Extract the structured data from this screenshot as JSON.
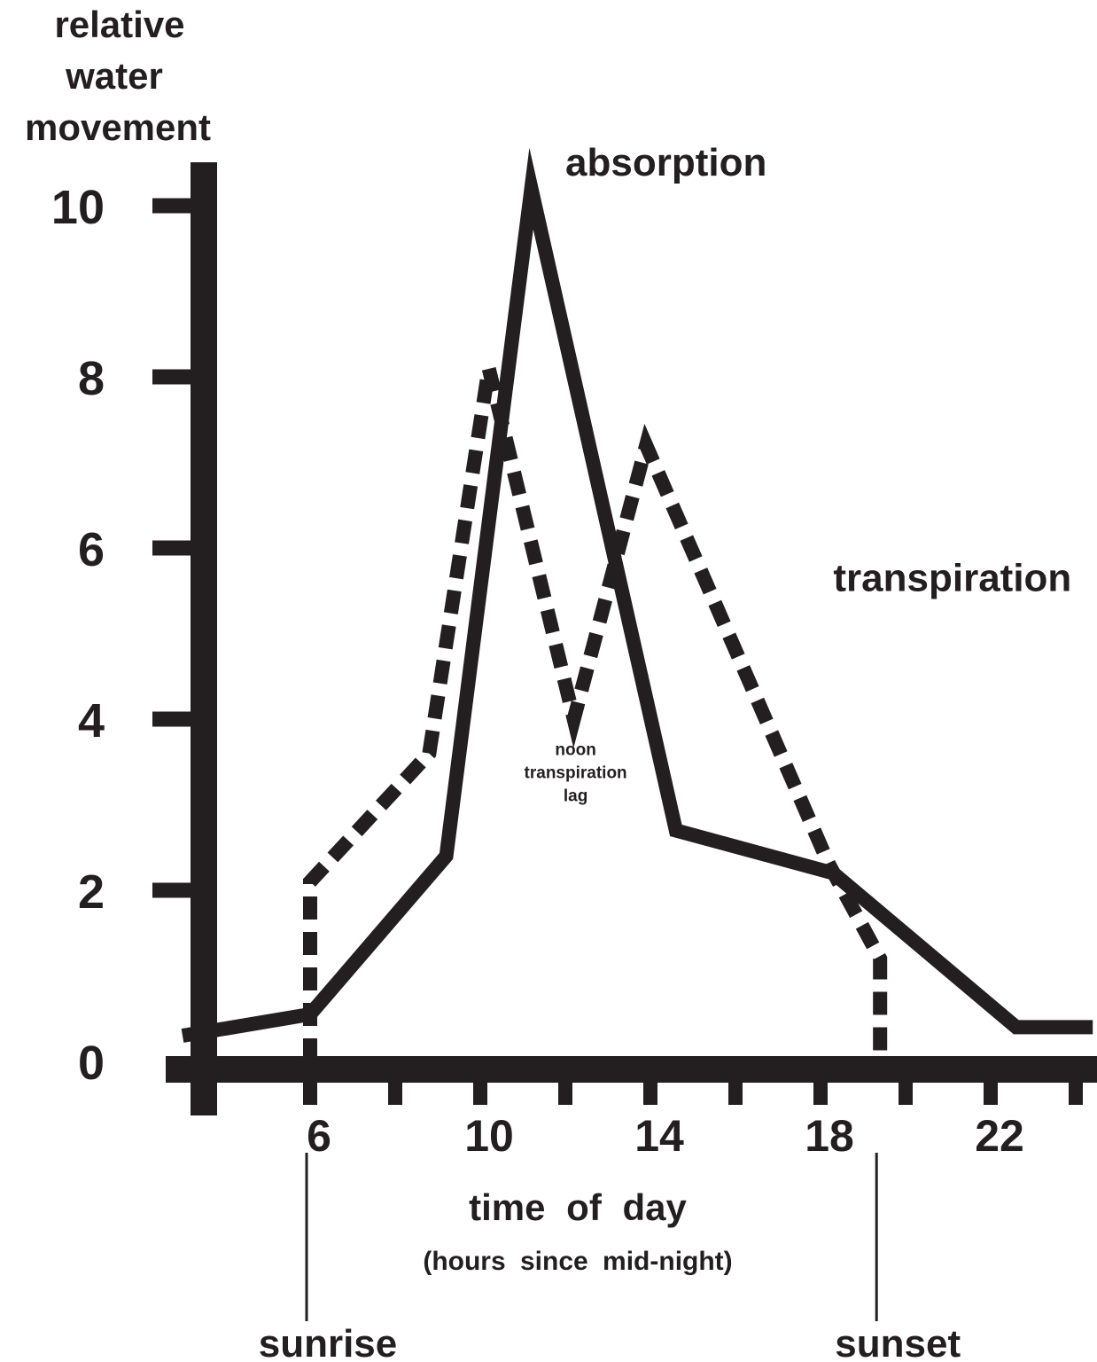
{
  "chart_data": {
    "type": "line",
    "ylabel": [
      "relative",
      "water",
      "movement"
    ],
    "xlabel": "time of day",
    "xlabel_sub": "(hours since mid-night)",
    "xlim": [
      2.9,
      24.4
    ],
    "ylim": [
      0,
      10.6
    ],
    "yticks": [
      0,
      2,
      4,
      6,
      8,
      10
    ],
    "xticks": [
      6,
      8,
      10,
      12,
      14,
      16,
      18,
      20,
      22,
      24
    ],
    "xtick_labels": [
      {
        "x": 6,
        "label": "6"
      },
      {
        "x": 10,
        "label": "10"
      },
      {
        "x": 14,
        "label": "14"
      },
      {
        "x": 18,
        "label": "18"
      },
      {
        "x": 22,
        "label": "22"
      }
    ],
    "series": [
      {
        "name": "absorption",
        "style": "solid",
        "color": "#231f20",
        "points": [
          [
            3.0,
            0.3
          ],
          [
            6.0,
            0.55
          ],
          [
            9.2,
            2.4
          ],
          [
            11.2,
            10.2
          ],
          [
            14.6,
            2.7
          ],
          [
            18.3,
            2.2
          ],
          [
            22.6,
            0.4
          ],
          [
            24.4,
            0.4
          ]
        ]
      },
      {
        "name": "transpiration",
        "style": "dashed",
        "color": "#231f20",
        "points": [
          [
            6.0,
            0.0
          ],
          [
            6.0,
            2.1
          ],
          [
            8.8,
            3.6
          ],
          [
            10.2,
            8.1
          ],
          [
            12.2,
            4.0
          ],
          [
            13.9,
            7.2
          ],
          [
            18.2,
            2.3
          ],
          [
            19.4,
            1.2
          ],
          [
            19.4,
            0.0
          ]
        ]
      }
    ],
    "series_labels": [
      {
        "series": "absorption",
        "x": 12.0,
        "y": 10.35
      },
      {
        "series": "transpiration",
        "x": 18.3,
        "y": 5.5
      }
    ],
    "annotations": [
      {
        "lines": [
          "noon",
          "transpiration",
          "lag"
        ],
        "x": 12.2,
        "y": 3.5
      }
    ],
    "events": [
      {
        "label": "sunrise",
        "x": 6.0
      },
      {
        "label": "sunset",
        "x": 19.4
      }
    ]
  }
}
